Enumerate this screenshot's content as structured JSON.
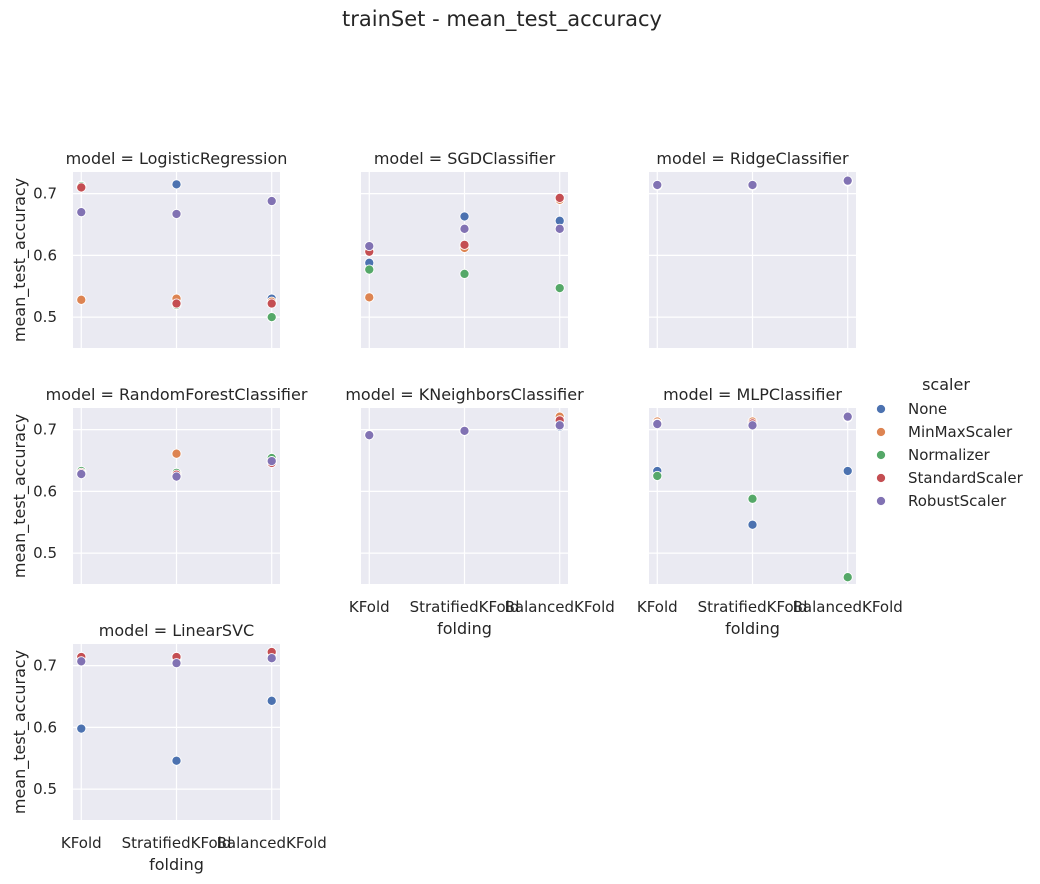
{
  "figure_title": "trainSet - mean_test_accuracy",
  "chart_data": {
    "type": "scatter",
    "layout": "facet-grid",
    "x_categories": [
      "KFold",
      "StratifiedKFold",
      "BalancedKFold"
    ],
    "xlabel": "folding",
    "ylabel": "mean_test_accuracy",
    "ylim": [
      0.45,
      0.735
    ],
    "yticks": [
      0.5,
      0.6,
      0.7
    ],
    "grid": true,
    "legend": {
      "title": "scaler",
      "placement": "right",
      "entries": [
        {
          "name": "None",
          "color": "#4c72b0"
        },
        {
          "name": "MinMaxScaler",
          "color": "#dd8452"
        },
        {
          "name": "Normalizer",
          "color": "#55a868"
        },
        {
          "name": "StandardScaler",
          "color": "#c44e52"
        },
        {
          "name": "RobustScaler",
          "color": "#8172b3"
        }
      ]
    },
    "facets": [
      {
        "title": "model = LogisticRegression",
        "series": [
          {
            "name": "None",
            "values": [
              0.713,
              0.715,
              0.53
            ]
          },
          {
            "name": "MinMaxScaler",
            "values": [
              0.528,
              0.53,
              0.525
            ]
          },
          {
            "name": "Normalizer",
            "values": [
              0.712,
              0.52,
              0.5
            ]
          },
          {
            "name": "StandardScaler",
            "values": [
              0.71,
              0.522,
              0.522
            ]
          },
          {
            "name": "RobustScaler",
            "values": [
              0.67,
              0.667,
              0.688
            ]
          }
        ]
      },
      {
        "title": "model = SGDClassifier",
        "series": [
          {
            "name": "None",
            "values": [
              0.588,
              0.663,
              0.656
            ]
          },
          {
            "name": "MinMaxScaler",
            "values": [
              0.532,
              0.612,
              0.69
            ]
          },
          {
            "name": "Normalizer",
            "values": [
              0.577,
              0.57,
              0.547
            ]
          },
          {
            "name": "StandardScaler",
            "values": [
              0.606,
              0.617,
              0.693
            ]
          },
          {
            "name": "RobustScaler",
            "values": [
              0.615,
              0.643,
              0.643
            ]
          }
        ]
      },
      {
        "title": "model = RidgeClassifier",
        "series": [
          {
            "name": "None",
            "values": [
              0.713,
              0.713,
              0.72
            ]
          },
          {
            "name": "MinMaxScaler",
            "values": [
              0.713,
              0.713,
              0.72
            ]
          },
          {
            "name": "Normalizer",
            "values": [
              0.713,
              0.713,
              0.72
            ]
          },
          {
            "name": "StandardScaler",
            "values": [
              0.713,
              0.713,
              0.72
            ]
          },
          {
            "name": "RobustScaler",
            "values": [
              0.714,
              0.714,
              0.721
            ]
          }
        ]
      },
      {
        "title": "model = RandomForestClassifier",
        "series": [
          {
            "name": "None",
            "values": [
              0.63,
              0.627,
              0.648
            ]
          },
          {
            "name": "MinMaxScaler",
            "values": [
              0.63,
              0.661,
              0.65
            ]
          },
          {
            "name": "Normalizer",
            "values": [
              0.633,
              0.63,
              0.654
            ]
          },
          {
            "name": "StandardScaler",
            "values": [
              0.63,
              0.627,
              0.646
            ]
          },
          {
            "name": "RobustScaler",
            "values": [
              0.628,
              0.624,
              0.649
            ]
          }
        ]
      },
      {
        "title": "model = KNeighborsClassifier",
        "series": [
          {
            "name": "None",
            "values": [
              0.692,
              0.698,
              0.705
            ]
          },
          {
            "name": "MinMaxScaler",
            "values": [
              0.692,
              0.698,
              0.721
            ]
          },
          {
            "name": "Normalizer",
            "values": [
              0.692,
              0.698,
              0.708
            ]
          },
          {
            "name": "StandardScaler",
            "values": [
              0.692,
              0.698,
              0.715
            ]
          },
          {
            "name": "RobustScaler",
            "values": [
              0.691,
              0.698,
              0.707
            ]
          }
        ]
      },
      {
        "title": "model = MLPClassifier",
        "series": [
          {
            "name": "None",
            "values": [
              0.633,
              0.546,
              0.633
            ]
          },
          {
            "name": "MinMaxScaler",
            "values": [
              0.713,
              0.713,
              0.72
            ]
          },
          {
            "name": "Normalizer",
            "values": [
              0.625,
              0.588,
              0.461
            ]
          },
          {
            "name": "StandardScaler",
            "values": [
              0.71,
              0.71,
              0.72
            ]
          },
          {
            "name": "RobustScaler",
            "values": [
              0.709,
              0.707,
              0.721
            ]
          }
        ]
      },
      {
        "title": "model = LinearSVC",
        "series": [
          {
            "name": "None",
            "values": [
              0.598,
              0.546,
              0.643
            ]
          },
          {
            "name": "MinMaxScaler",
            "values": [
              0.713,
              0.713,
              0.72
            ]
          },
          {
            "name": "Normalizer",
            "values": [
              0.71,
              0.71,
              0.718
            ]
          },
          {
            "name": "StandardScaler",
            "values": [
              0.714,
              0.714,
              0.722
            ]
          },
          {
            "name": "RobustScaler",
            "values": [
              0.707,
              0.704,
              0.712
            ]
          }
        ]
      }
    ]
  }
}
